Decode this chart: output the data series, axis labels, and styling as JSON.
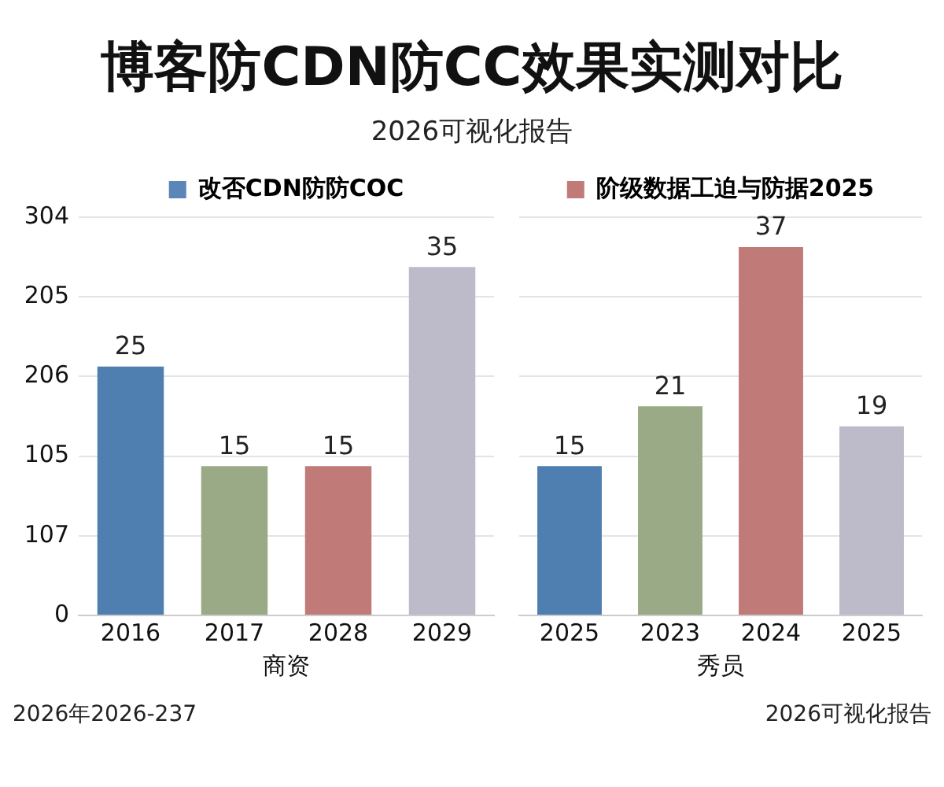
{
  "chart_data": [
    {
      "type": "bar",
      "title": "博客防CDN防CC效果实测对比",
      "subtitle": "2026可视化报告",
      "xlabel": "商资",
      "categories": [
        "2016",
        "2017",
        "2028",
        "2029"
      ],
      "series": [
        {
          "name": "改否CDN防防COC",
          "color": "#5a86b8",
          "colors": [
            "#4f7fb0",
            "#9aaa86",
            "#c07b78",
            "#bdbbc9"
          ],
          "values": [
            25,
            15,
            15,
            35
          ]
        }
      ],
      "data_labels": true,
      "ylim": [
        0,
        40
      ],
      "yticks": [
        {
          "value": 0,
          "label": null
        },
        {
          "value": 8,
          "label": null
        },
        {
          "value": 16,
          "label": null
        },
        {
          "value": 24,
          "label": null
        },
        {
          "value": 32,
          "label": null
        },
        {
          "value": 40,
          "label": null
        }
      ],
      "tick_labels": "x",
      "grid": "y",
      "legend": "top",
      "annotations": [
        "304",
        "205",
        "206",
        "105",
        "107",
        "0",
        "2026年2026-237"
      ]
    },
    {
      "type": "bar",
      "xlabel": "秀员",
      "categories": [
        "2025",
        "2023",
        "2024",
        "2025"
      ],
      "series": [
        {
          "name": "阶级数据工迫与防据2025",
          "color": "#c07b78",
          "colors": [
            "#4f7fb0",
            "#9aaa86",
            "#c07b78",
            "#bdbbc9"
          ],
          "values": [
            15,
            21,
            37,
            19
          ]
        }
      ],
      "data_labels": true,
      "ylim": [
        0,
        40
      ],
      "yticks": [
        {
          "value": 0,
          "label": null
        },
        {
          "value": 8,
          "label": null
        },
        {
          "value": 16,
          "label": null
        },
        {
          "value": 24,
          "label": null
        },
        {
          "value": 32,
          "label": null
        },
        {
          "value": 40,
          "label": null
        }
      ],
      "tick_labels": "x",
      "grid": "y",
      "legend": "top",
      "annotations": [
        "2026可视化报告"
      ]
    }
  ]
}
